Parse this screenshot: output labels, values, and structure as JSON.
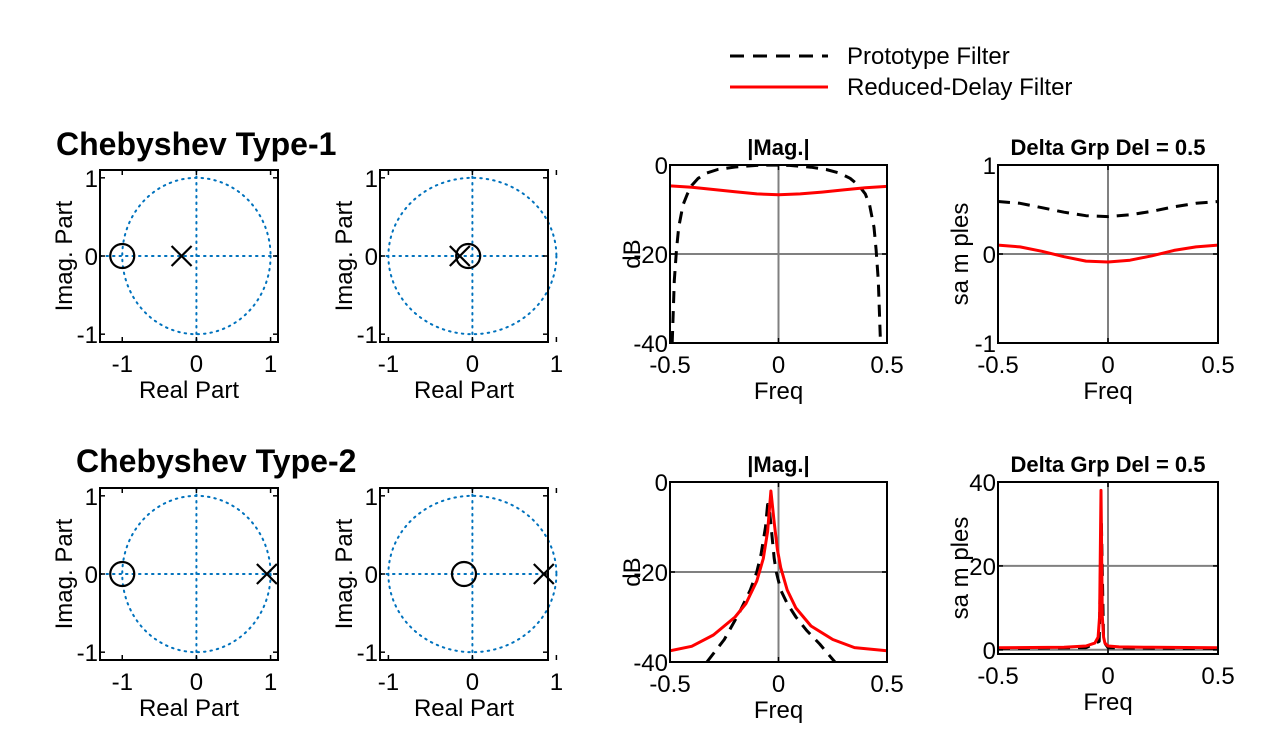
{
  "legend": {
    "entries": [
      {
        "label": "Prototype Filter",
        "color": "#000000",
        "style": "dashed"
      },
      {
        "label": "Reduced-Delay Filter",
        "color": "#ff0000",
        "style": "solid"
      }
    ]
  },
  "rows": [
    {
      "title": "Chebyshev Type-1"
    },
    {
      "title": "Chebyshev Type-2"
    }
  ],
  "colors": {
    "grid_dotted": "#0072bd",
    "grid_solid": "#808080",
    "prototype": "#000000",
    "reduced": "#ff0000"
  },
  "chart_data": [
    {
      "type": "scatter",
      "name": "pz-prototype-type1",
      "xlabel": "Real Part",
      "ylabel": "Imag. Part",
      "xlim": [
        -1.3,
        1.1
      ],
      "ylim": [
        -1.1,
        1.1
      ],
      "xticks": [
        -1,
        0,
        1
      ],
      "yticks": [
        -1,
        0,
        1
      ],
      "xticklabels": [
        "-1",
        "0",
        "1"
      ],
      "yticklabels": [
        "-1",
        "0",
        "1"
      ],
      "zeros": [
        [
          -1,
          0
        ]
      ],
      "poles": [
        [
          -0.2,
          0
        ]
      ]
    },
    {
      "type": "scatter",
      "name": "pz-reduced-type1",
      "xlabel": "Real Part",
      "ylabel": "Imag. Part",
      "xlim": [
        -1.1,
        0.9
      ],
      "ylim": [
        -1.1,
        1.1
      ],
      "xticks": [
        -1,
        0,
        1
      ],
      "yticks": [
        -1,
        0,
        1
      ],
      "xticklabels": [
        "-1",
        "0",
        "1"
      ],
      "yticklabels": [
        "-1",
        "0",
        "1"
      ],
      "zeros": [
        [
          -0.05,
          0
        ]
      ],
      "poles": [
        [
          -0.15,
          0
        ]
      ]
    },
    {
      "type": "line",
      "name": "mag-type1",
      "title": "|Mag.|",
      "xlabel": "Freq",
      "ylabel": "dB",
      "xlim": [
        -0.5,
        0.5
      ],
      "ylim": [
        -40,
        0
      ],
      "xticks": [
        -0.5,
        0,
        0.5
      ],
      "yticks": [
        -40,
        -20,
        0
      ],
      "xticklabels": [
        "-0.5",
        "0",
        "0.5"
      ],
      "yticklabels": [
        "-40",
        "-20",
        "0"
      ],
      "series": [
        {
          "name": "Prototype Filter",
          "style": "dashed",
          "x": [
            -0.49,
            -0.48,
            -0.47,
            -0.46,
            -0.44,
            -0.42,
            -0.4,
            -0.37,
            -0.33,
            -0.28,
            -0.2,
            -0.1,
            -0.04,
            0.05,
            0.15,
            0.22,
            0.28,
            0.33,
            0.37,
            0.4,
            0.42,
            0.44,
            0.45,
            0.46,
            0.47
          ],
          "y": [
            -40,
            -26,
            -19,
            -14,
            -9,
            -6.5,
            -4.6,
            -3,
            -1.8,
            -1,
            -0.45,
            -0.1,
            0,
            -0.1,
            -0.5,
            -1,
            -1.8,
            -3,
            -4.6,
            -6.5,
            -9,
            -14,
            -19,
            -26,
            -40
          ]
        },
        {
          "name": "Reduced-Delay Filter",
          "style": "solid",
          "x": [
            -0.5,
            -0.4,
            -0.3,
            -0.2,
            -0.1,
            0,
            0.1,
            0.2,
            0.3,
            0.4,
            0.5
          ],
          "y": [
            -4.7,
            -5.0,
            -5.5,
            -6.0,
            -6.5,
            -6.7,
            -6.5,
            -6.1,
            -5.6,
            -5.1,
            -4.8
          ]
        }
      ]
    },
    {
      "type": "line",
      "name": "grpdel-type1",
      "title": "Delta Grp Del = 0.5",
      "xlabel": "Freq",
      "ylabel": "sa m ples",
      "xlim": [
        -0.5,
        0.5
      ],
      "ylim": [
        -1,
        1
      ],
      "xticks": [
        -0.5,
        0,
        0.5
      ],
      "yticks": [
        -1,
        0,
        1
      ],
      "xticklabels": [
        "-0.5",
        "0",
        "0.5"
      ],
      "yticklabels": [
        "-1",
        "0",
        "1"
      ],
      "series": [
        {
          "name": "Prototype Filter",
          "style": "dashed",
          "x": [
            -0.5,
            -0.4,
            -0.3,
            -0.2,
            -0.1,
            0,
            0.1,
            0.2,
            0.3,
            0.4,
            0.5
          ],
          "y": [
            0.59,
            0.57,
            0.52,
            0.47,
            0.43,
            0.42,
            0.44,
            0.48,
            0.53,
            0.57,
            0.59
          ]
        },
        {
          "name": "Reduced-Delay Filter",
          "style": "solid",
          "x": [
            -0.5,
            -0.4,
            -0.3,
            -0.2,
            -0.1,
            0,
            0.1,
            0.2,
            0.3,
            0.4,
            0.5
          ],
          "y": [
            0.1,
            0.08,
            0.03,
            -0.03,
            -0.08,
            -0.09,
            -0.07,
            -0.02,
            0.04,
            0.08,
            0.1
          ]
        }
      ]
    },
    {
      "type": "scatter",
      "name": "pz-prototype-type2",
      "xlabel": "Real Part",
      "ylabel": "Imag. Part",
      "xlim": [
        -1.3,
        1.1
      ],
      "ylim": [
        -1.1,
        1.1
      ],
      "xticks": [
        -1,
        0,
        1
      ],
      "yticks": [
        -1,
        0,
        1
      ],
      "xticklabels": [
        "-1",
        "0",
        "1"
      ],
      "yticklabels": [
        "-1",
        "0",
        "1"
      ],
      "zeros": [
        [
          -1,
          0
        ]
      ],
      "poles": [
        [
          0.95,
          0
        ]
      ]
    },
    {
      "type": "scatter",
      "name": "pz-reduced-type2",
      "xlabel": "Real Part",
      "ylabel": "Imag. Part",
      "xlim": [
        -1.1,
        0.9
      ],
      "ylim": [
        -1.1,
        1.1
      ],
      "xticks": [
        -1,
        0,
        1
      ],
      "yticks": [
        -1,
        0,
        1
      ],
      "xticklabels": [
        "-1",
        "0",
        "1"
      ],
      "yticklabels": [
        "-1",
        "0",
        "1"
      ],
      "zeros": [
        [
          -0.1,
          0
        ]
      ],
      "poles": [
        [
          0.85,
          0
        ]
      ]
    },
    {
      "type": "line",
      "name": "mag-type2",
      "title": "|Mag.|",
      "xlabel": "Freq",
      "ylabel": "dB",
      "xlim": [
        -0.5,
        0.5
      ],
      "ylim": [
        -40,
        0
      ],
      "xticks": [
        -0.5,
        0,
        0.5
      ],
      "yticks": [
        -40,
        -20,
        0
      ],
      "xticklabels": [
        "-0.5",
        "0",
        "0.5"
      ],
      "yticklabels": [
        "-40",
        "-20",
        "0"
      ],
      "series": [
        {
          "name": "Prototype Filter",
          "style": "dashed",
          "x": [
            -0.33,
            -0.25,
            -0.18,
            -0.13,
            -0.1,
            -0.08,
            -0.06,
            -0.05,
            -0.04,
            -0.03,
            -0.02,
            -0.01,
            0.01,
            0.04,
            0.08,
            0.13,
            0.19,
            0.26
          ],
          "y": [
            -40,
            -35,
            -29,
            -24,
            -20,
            -16,
            -10,
            -5,
            -7,
            -12,
            -17,
            -20,
            -24,
            -27,
            -30,
            -33,
            -36,
            -40
          ]
        },
        {
          "name": "Reduced-Delay Filter",
          "style": "solid",
          "x": [
            -0.5,
            -0.4,
            -0.3,
            -0.2,
            -0.15,
            -0.1,
            -0.07,
            -0.05,
            -0.035,
            -0.02,
            -0.005,
            0.01,
            0.04,
            0.08,
            0.15,
            0.25,
            0.35,
            0.5
          ],
          "y": [
            -37.5,
            -36.5,
            -34,
            -30,
            -27,
            -22,
            -17,
            -11,
            -2,
            -9,
            -15,
            -19,
            -24,
            -28,
            -32,
            -35,
            -36.8,
            -37.5
          ]
        }
      ]
    },
    {
      "type": "line",
      "name": "grpdel-type2",
      "title": "Delta Grp Del = 0.5",
      "xlabel": "Freq",
      "ylabel": "sa m ples",
      "xlim": [
        -0.5,
        0.5
      ],
      "ylim": [
        -1,
        40
      ],
      "xticks": [
        -0.5,
        0,
        0.5
      ],
      "yticks": [
        0,
        20,
        40
      ],
      "xticklabels": [
        "-0.5",
        "0",
        "0.5"
      ],
      "yticklabels": [
        "0",
        "20",
        "40"
      ],
      "series": [
        {
          "name": "Prototype Filter",
          "style": "dashed",
          "x": [
            -0.5,
            -0.1,
            -0.04,
            -0.03,
            -0.02,
            0.0,
            0.1,
            0.5
          ],
          "y": [
            0.3,
            0.5,
            2,
            30,
            2,
            0.5,
            0.4,
            0.3
          ]
        },
        {
          "name": "Reduced-Delay Filter",
          "style": "solid",
          "x": [
            -0.5,
            -0.2,
            -0.1,
            -0.06,
            -0.045,
            -0.038,
            -0.032,
            -0.026,
            -0.02,
            -0.014,
            0.0,
            0.05,
            0.2,
            0.5
          ],
          "y": [
            0.5,
            0.6,
            0.9,
            1.6,
            3,
            8,
            38,
            8,
            3,
            1.6,
            0.9,
            0.7,
            0.6,
            0.5
          ]
        }
      ]
    }
  ]
}
